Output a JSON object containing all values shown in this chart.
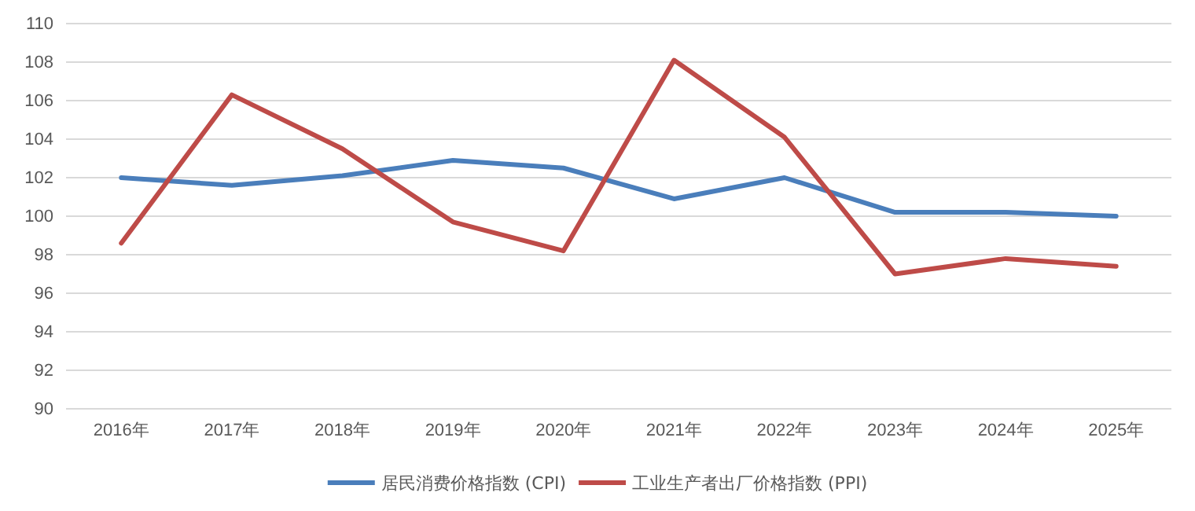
{
  "chart_data": {
    "type": "line",
    "categories": [
      "2016年",
      "2017年",
      "2018年",
      "2019年",
      "2020年",
      "2021年",
      "2022年",
      "2023年",
      "2024年",
      "2025年"
    ],
    "series": [
      {
        "name": "居民消费价格指数 (CPI)",
        "color": "#4a7ebb",
        "values": [
          102.0,
          101.6,
          102.1,
          102.9,
          102.5,
          100.9,
          102.0,
          100.2,
          100.2,
          100.0
        ]
      },
      {
        "name": "工业生产者出厂价格指数 (PPI)",
        "color": "#be4b48",
        "values": [
          98.6,
          106.3,
          103.5,
          99.7,
          98.2,
          108.1,
          104.1,
          97.0,
          97.8,
          97.4
        ]
      }
    ],
    "ylim": [
      90,
      110
    ],
    "yticks": [
      90,
      92,
      94,
      96,
      98,
      100,
      102,
      104,
      106,
      108,
      110
    ],
    "grid": "y",
    "legend": "bottom",
    "marker": "none",
    "line_style": "solid"
  }
}
